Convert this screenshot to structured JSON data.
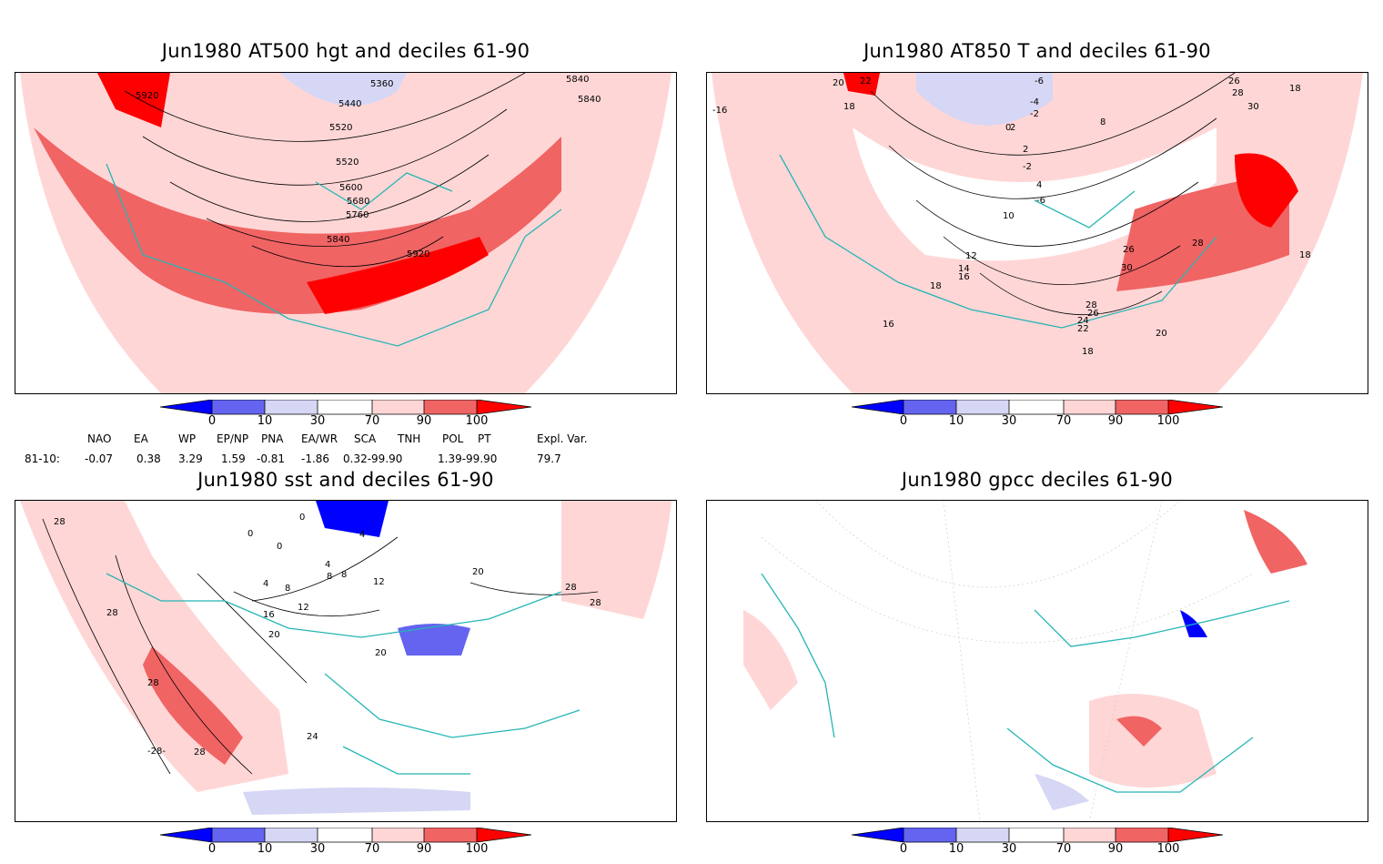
{
  "panels": [
    {
      "title": "Jun1980 AT500 hgt and deciles 61-90",
      "contour_labels": [
        "5920",
        "5360",
        "5840",
        "5840",
        "5440",
        "5520",
        "5520",
        "5600",
        "5680",
        "5760",
        "5840",
        "5920"
      ]
    },
    {
      "title": "Jun1980 AT850 T and deciles 61-90",
      "contour_labels": [
        "20",
        "22",
        "-6",
        "26",
        "28",
        "18",
        "-16",
        "18",
        "-4",
        "-2",
        "0",
        "2",
        "2",
        "-2",
        "8",
        "30",
        "4",
        "-6",
        "10",
        "12",
        "26",
        "28",
        "14",
        "16",
        "30",
        "18",
        "28",
        "26",
        "24",
        "22",
        "16",
        "20",
        "18",
        "18"
      ]
    },
    {
      "title": "Jun1980 sst and deciles 61-90",
      "contour_labels": [
        "28",
        "0",
        "0",
        "4",
        "0",
        "4",
        "8",
        "12",
        "20",
        "28",
        "28",
        "4",
        "8",
        "8",
        "12",
        "16",
        "20",
        "20",
        "28",
        "28",
        "24",
        "-28-",
        "28"
      ]
    },
    {
      "title": "Jun1980 gpcc deciles 61-90",
      "contour_labels": []
    }
  ],
  "colorbar": {
    "ticks": [
      "0",
      "10",
      "30",
      "70",
      "90",
      "100"
    ],
    "colors": [
      "#0000ff",
      "#6464f0",
      "#d6d6f5",
      "#ffffff",
      "#ffd6d6",
      "#f06464",
      "#ff0000"
    ]
  },
  "indices": {
    "headers": [
      "NAO",
      "EA",
      "WP",
      "EP/NP",
      "PNA",
      "EA/WR",
      "SCA",
      "TNH",
      "POL",
      "PT",
      "Expl. Var."
    ],
    "row_label": "81-10:",
    "values": [
      "-0.07",
      "0.38",
      "3.29",
      "1.59",
      "-0.81",
      "-1.86",
      "0.32-99.90",
      "1.39-99.90",
      "79.7"
    ]
  }
}
